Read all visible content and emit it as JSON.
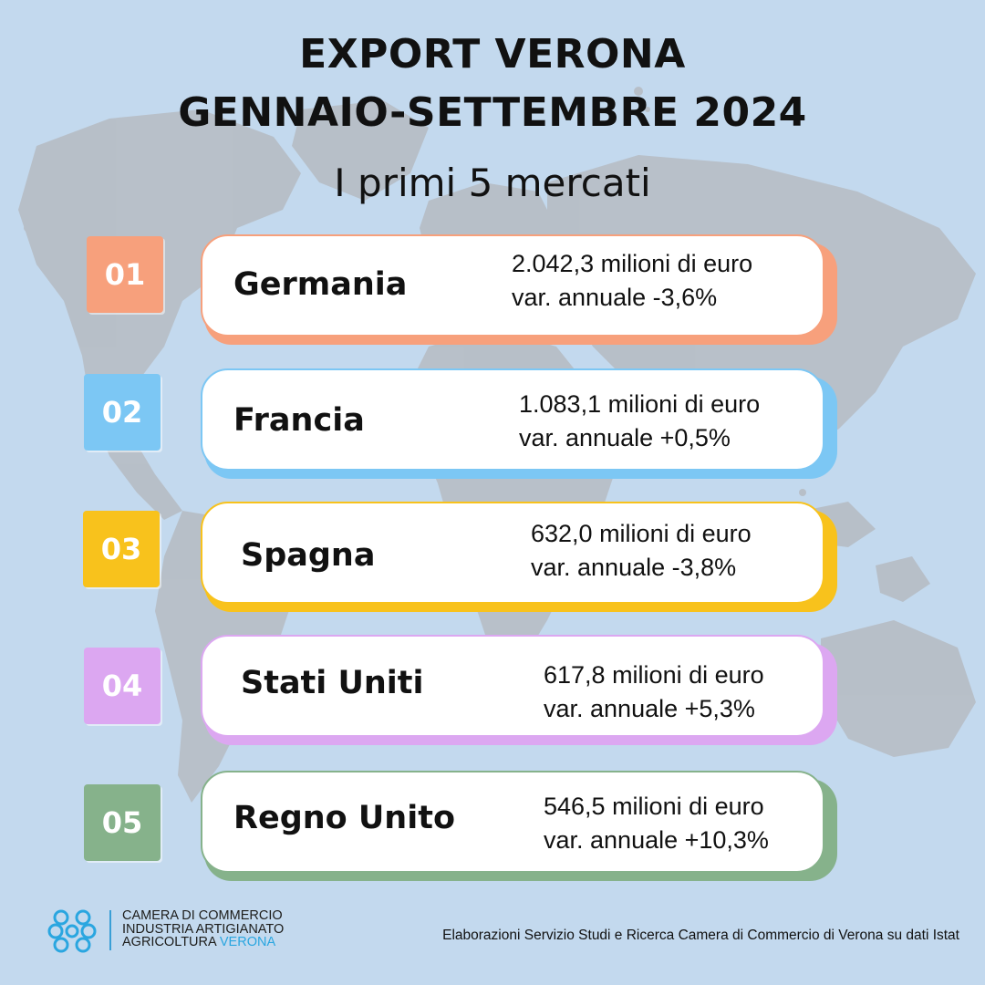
{
  "header": {
    "title_line1": "EXPORT VERONA",
    "title_line2": "GENNAIO-SETTEMBRE 2024",
    "subtitle": "I primi 5 mercati"
  },
  "markets": [
    {
      "rank": "01",
      "country": "Germania",
      "value": "2.042,3 milioni di euro",
      "change": "var. annuale -3,6%",
      "color": "#f7a07c"
    },
    {
      "rank": "02",
      "country": "Francia",
      "value": "1.083,1 milioni di euro",
      "change": "var. annuale +0,5%",
      "color": "#7cc7f4"
    },
    {
      "rank": "03",
      "country": "Spagna",
      "value": "632,0 milioni di euro",
      "change": "var. annuale -3,8%",
      "color": "#f8c21c"
    },
    {
      "rank": "04",
      "country": "Stati Uniti",
      "value": "617,8 milioni di euro",
      "change": "var. annuale +5,3%",
      "color": "#dca7f1"
    },
    {
      "rank": "05",
      "country": "Regno Unito",
      "value": "546,5 milioni di euro",
      "change": "var. annuale +10,3%",
      "color": "#86b28b"
    }
  ],
  "footer": {
    "org_line1": "CAMERA DI COMMERCIO",
    "org_line2": "INDUSTRIA ARTIGIANATO",
    "org_line3a": "AGRICOLTURA",
    "org_line3b": "VERONA",
    "credit": "Elaborazioni Servizio Studi e Ricerca Camera di Commercio di Verona su dati Istat",
    "logo_icon": "chamber-logo-icon",
    "logo_color": "#2aa6e0"
  },
  "background": {
    "color": "#c3d9ee",
    "map_color": "#b7bcc3",
    "map_icon": "world-map-icon"
  }
}
